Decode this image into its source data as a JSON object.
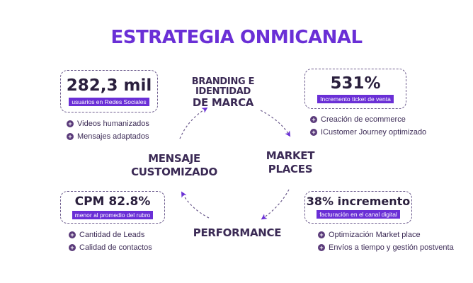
{
  "title": "ESTRATEGIA ONMICANAL",
  "stages": {
    "branding_line1": "BRANDING E IDENTIDAD",
    "branding_line2": "DE MARCA",
    "market_line1": "MARKET",
    "market_line2": "PLACES",
    "performance": "PERFORMANCE",
    "mensaje_line1": "MENSAJE",
    "mensaje_line2": "CUSTOMIZADO"
  },
  "stats": {
    "top_left": {
      "value": "282,3 mil",
      "label": "usuarios en Redes Sociales"
    },
    "top_right": {
      "value": "531%",
      "label": "Incremento ticket de venta"
    },
    "bottom_left": {
      "value": "CPM 82.8%",
      "label": "menor al promedio del rubro"
    },
    "bottom_right": {
      "value": "38% incremento",
      "label": "facturación en el canal digital"
    }
  },
  "bullets": {
    "top_left": [
      "Videos humanizados",
      "Mensajes adaptados"
    ],
    "top_right": [
      "Creación de ecommerce",
      "ICustomer Journey optimizado"
    ],
    "bottom_left": [
      "Cantidad de Leads",
      "Calidad de contactos"
    ],
    "bottom_right": [
      "Optimización Market place",
      "Envíos a tiempo y gestión postventa"
    ]
  },
  "colors": {
    "accent": "#6a2fd6",
    "text": "#2a1f3d"
  },
  "icons": {
    "bullet": "plus-circle-icon",
    "flow": "dashed-arrow-icon"
  }
}
